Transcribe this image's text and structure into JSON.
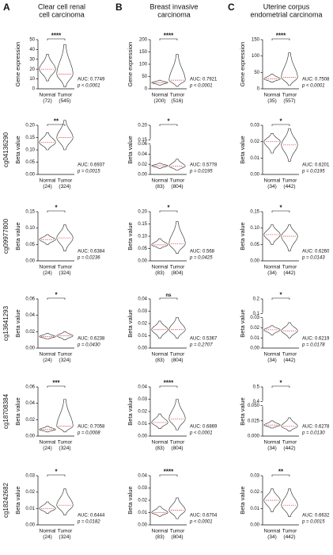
{
  "columns": [
    {
      "letter": "A",
      "title": [
        "Clear cell renal",
        "cell carcinoma"
      ]
    },
    {
      "letter": "B",
      "title": [
        "Breast invasive",
        "carcinoma"
      ]
    },
    {
      "letter": "C",
      "title": [
        "Uterine corpus",
        "endometrial carcinoma"
      ]
    }
  ],
  "row_labels": [
    "cg04136290",
    "cg09977800",
    "cg13641293",
    "cg18708384",
    "cg18242682"
  ],
  "colors": {
    "outline": "#222222",
    "median": "#e0403a"
  },
  "chart_data": [
    {
      "type": "violin",
      "ylabel": "Gene expression",
      "categories": [
        "Normal",
        "Tumor"
      ],
      "counts": [
        "(72)",
        "(545)"
      ],
      "ylim": [
        0,
        50
      ],
      "yticks": [
        0,
        10,
        20,
        30,
        40,
        50
      ],
      "significance": "****",
      "auc": "AUC: 0.7749",
      "p": "p < 0,0001",
      "min": [
        8,
        2
      ],
      "median": [
        20,
        15
      ],
      "max": [
        35,
        45
      ]
    },
    {
      "type": "violin",
      "ylabel": "Beta value",
      "categories": [
        "Normal",
        "Tumor"
      ],
      "counts": [
        "(24)",
        "(324)"
      ],
      "ylim": [
        0,
        0.2
      ],
      "yticks": [
        {
          "value": 0,
          "label": "0.00"
        },
        {
          "value": 0.05,
          "label": "0.05"
        },
        {
          "value": 0.1,
          "label": "0.10"
        },
        {
          "value": 0.15,
          "label": "0.15"
        },
        {
          "value": 0.2,
          "label": "0.20"
        }
      ],
      "significance": "**",
      "auc": "AUC: 0.6937",
      "p": "p = 0,0015",
      "min": [
        0.1,
        0.1
      ],
      "median": [
        0.13,
        0.15
      ],
      "max": [
        0.17,
        0.22
      ]
    },
    {
      "type": "violin",
      "ylabel": "Beta value",
      "categories": [
        "Normal",
        "Tumor"
      ],
      "counts": [
        "(24)",
        "(324)"
      ],
      "ylim": [
        0,
        0.15
      ],
      "yticks": [
        {
          "value": 0,
          "label": "0.00"
        },
        {
          "value": 0.05,
          "label": "0.05"
        },
        {
          "value": 0.1,
          "label": "0.10"
        },
        {
          "value": 0.15,
          "label": "0.15"
        }
      ],
      "significance": "*",
      "auc": "AUC: 0.6384",
      "p": "p = 0,0236",
      "min": [
        0.05,
        0.03
      ],
      "median": [
        0.065,
        0.07
      ],
      "max": [
        0.08,
        0.11
      ]
    },
    {
      "type": "violin",
      "ylabel": "Beta value",
      "categories": [
        "Normal",
        "Tumor"
      ],
      "counts": [
        "(24)",
        "(324)"
      ],
      "ylim": [
        0,
        0.06
      ],
      "yticks": [
        {
          "value": 0,
          "label": "0.00"
        },
        {
          "value": 0.02,
          "label": "0.02"
        },
        {
          "value": 0.04,
          "label": "0.04"
        },
        {
          "value": 0.06,
          "label": "0.06"
        }
      ],
      "significance": "*",
      "auc": "AUC: 0.6238",
      "p": "p = 0,0430",
      "min": [
        0.011,
        0.01
      ],
      "median": [
        0.014,
        0.015
      ],
      "max": [
        0.018,
        0.02
      ]
    },
    {
      "type": "violin",
      "ylabel": "Beta value",
      "categories": [
        "Normal",
        "Tumor"
      ],
      "counts": [
        "(24)",
        "(324)"
      ],
      "ylim": [
        0,
        0.06
      ],
      "yticks": [
        {
          "value": 0,
          "label": "0.00"
        },
        {
          "value": 0.02,
          "label": "0.02"
        },
        {
          "value": 0.04,
          "label": "0.04"
        },
        {
          "value": 0.06,
          "label": "0.06"
        }
      ],
      "significance": "***",
      "auc": "AUC: 0.7058",
      "p": "p = 0,0008",
      "min": [
        0.005,
        0.005
      ],
      "median": [
        0.008,
        0.012
      ],
      "max": [
        0.012,
        0.045
      ]
    },
    {
      "type": "violin",
      "ylabel": "Beta value",
      "categories": [
        "Normal",
        "Tumor"
      ],
      "counts": [
        "(24)",
        "(324)"
      ],
      "ylim": [
        0,
        0.03
      ],
      "yticks": [
        {
          "value": 0,
          "label": "0.00"
        },
        {
          "value": 0.01,
          "label": "0.01"
        },
        {
          "value": 0.02,
          "label": "0.02"
        },
        {
          "value": 0.03,
          "label": "0.03"
        }
      ],
      "significance": "*",
      "auc": "AUC: 0.6444",
      "p": "p = 0,0182",
      "min": [
        0.007,
        0.006
      ],
      "median": [
        0.01,
        0.012
      ],
      "max": [
        0.014,
        0.022
      ]
    },
    {
      "type": "violin",
      "ylabel": "Gene expression",
      "categories": [
        "Normal",
        "Tumor"
      ],
      "counts": [
        "(200)",
        "(516)"
      ],
      "ylim": [
        0,
        200
      ],
      "yticks": [
        0,
        50,
        100,
        150,
        200
      ],
      "significance": "****",
      "auc": "AUC: 0.7921",
      "p": "p < 0,0001",
      "min": [
        15,
        10
      ],
      "median": [
        25,
        35
      ],
      "max": [
        35,
        140
      ]
    },
    {
      "type": "violin",
      "ylabel": "Beta value",
      "categories": [
        "Normal",
        "Tumor"
      ],
      "counts": [
        "(83)",
        "(804)"
      ],
      "ylim": [
        0,
        0.2
      ],
      "ybreak": [
        0.06,
        0.15
      ],
      "yticks": [
        {
          "value": 0,
          "label": "0.00"
        },
        {
          "value": 0.02,
          "label": "0.02"
        },
        {
          "value": 0.04,
          "label": "0.04"
        },
        {
          "value": 0.06,
          "label": "0.06"
        },
        {
          "value": 0.15,
          "label": "0.15"
        },
        {
          "value": 0.2,
          "label": "0.20"
        }
      ],
      "significance": "*",
      "auc": "AUC: 0.5778",
      "p": "p = 0,0195",
      "min": [
        0.012,
        0.008
      ],
      "median": [
        0.017,
        0.016
      ],
      "max": [
        0.022,
        0.03
      ]
    },
    {
      "type": "violin",
      "ylabel": "Beta value",
      "categories": [
        "Normal",
        "Tumor"
      ],
      "counts": [
        "(83)",
        "(804)"
      ],
      "ylim": [
        0,
        0.2
      ],
      "yticks": [
        {
          "value": 0,
          "label": "0.00"
        },
        {
          "value": 0.05,
          "label": "0.05"
        },
        {
          "value": 0.1,
          "label": "0.10"
        },
        {
          "value": 0.15,
          "label": "0.15"
        },
        {
          "value": 0.2,
          "label": "0.20"
        }
      ],
      "significance": "*",
      "auc": "AUC: 0.568",
      "p": "p = 0,0425",
      "min": [
        0.05,
        0.03
      ],
      "median": [
        0.065,
        0.07
      ],
      "max": [
        0.09,
        0.16
      ]
    },
    {
      "type": "violin",
      "ylabel": "Beta value",
      "categories": [
        "Normal",
        "Tumor"
      ],
      "counts": [
        "(83)",
        "(804)"
      ],
      "ylim": [
        0,
        0.04
      ],
      "yticks": [
        {
          "value": 0,
          "label": "0.00"
        },
        {
          "value": 0.01,
          "label": "0.01"
        },
        {
          "value": 0.02,
          "label": "0.02"
        },
        {
          "value": 0.03,
          "label": "0.03"
        },
        {
          "value": 0.04,
          "label": "0.04"
        }
      ],
      "significance": "ns",
      "auc": "AUC: 0.5367",
      "p": "p = 0,2707",
      "min": [
        0.008,
        0.008
      ],
      "median": [
        0.015,
        0.015
      ],
      "max": [
        0.022,
        0.025
      ]
    },
    {
      "type": "violin",
      "ylabel": "Beta value",
      "categories": [
        "Normal",
        "Tumor"
      ],
      "counts": [
        "(83)",
        "(804)"
      ],
      "ylim": [
        0,
        0.04
      ],
      "yticks": [
        {
          "value": 0,
          "label": "0.00"
        },
        {
          "value": 0.01,
          "label": "0.01"
        },
        {
          "value": 0.02,
          "label": "0.02"
        },
        {
          "value": 0.03,
          "label": "0.03"
        },
        {
          "value": 0.04,
          "label": "0.04"
        }
      ],
      "significance": "****",
      "auc": "AUC: 0.6869",
      "p": "p < 0,0001",
      "min": [
        0.006,
        0.005
      ],
      "median": [
        0.011,
        0.014
      ],
      "max": [
        0.018,
        0.03
      ]
    },
    {
      "type": "violin",
      "ylabel": "Beta value",
      "categories": [
        "Normal",
        "Tumor"
      ],
      "counts": [
        "(83)",
        "(804)"
      ],
      "ylim": [
        0,
        0.04
      ],
      "yticks": [
        {
          "value": 0,
          "label": "0.00"
        },
        {
          "value": 0.01,
          "label": "0.01"
        },
        {
          "value": 0.02,
          "label": "0.02"
        },
        {
          "value": 0.03,
          "label": "0.03"
        },
        {
          "value": 0.04,
          "label": "0.04"
        }
      ],
      "significance": "****",
      "auc": "AUC: 0.6704",
      "p": "p < 0,0001",
      "min": [
        0.007,
        0.005
      ],
      "median": [
        0.01,
        0.012
      ],
      "max": [
        0.015,
        0.022
      ]
    },
    {
      "type": "violin",
      "ylabel": "Gene expression",
      "categories": [
        "Normal",
        "Tumor"
      ],
      "counts": [
        "(35)",
        "(557)"
      ],
      "ylim": [
        0,
        150
      ],
      "yticks": [
        0,
        50,
        100,
        150
      ],
      "significance": "****",
      "auc": "AUC: 0.7508",
      "p": "p < 0,0001",
      "min": [
        20,
        10
      ],
      "median": [
        30,
        35
      ],
      "max": [
        45,
        110
      ]
    },
    {
      "type": "violin",
      "ylabel": "Beta value",
      "categories": [
        "Normal",
        "Tumor"
      ],
      "counts": [
        "(34)",
        "(442)"
      ],
      "ylim": [
        0,
        0.03
      ],
      "yticks": [
        {
          "value": 0,
          "label": "0.00"
        },
        {
          "value": 0.01,
          "label": "0.01"
        },
        {
          "value": 0.02,
          "label": "0.02"
        },
        {
          "value": 0.03,
          "label": "0.03"
        }
      ],
      "significance": "*",
      "auc": "AUC: 0.6201",
      "p": "p = 0,0195",
      "min": [
        0.013,
        0.008
      ],
      "median": [
        0.02,
        0.018
      ],
      "max": [
        0.025,
        0.028
      ]
    },
    {
      "type": "violin",
      "ylabel": "Beta value",
      "categories": [
        "Normal",
        "Tumor"
      ],
      "counts": [
        "(34)",
        "(442)"
      ],
      "ylim": [
        0,
        0.15
      ],
      "yticks": [
        {
          "value": 0,
          "label": "0.00"
        },
        {
          "value": 0.05,
          "label": "0.05"
        },
        {
          "value": 0.1,
          "label": "0.10"
        },
        {
          "value": 0.15,
          "label": "0.15"
        }
      ],
      "significance": "*",
      "auc": "AUC: 0.6260",
      "p": "p = 0,0143",
      "min": [
        0.05,
        0.03
      ],
      "median": [
        0.08,
        0.075
      ],
      "max": [
        0.11,
        0.11
      ]
    },
    {
      "type": "violin",
      "ylabel": "Beta value",
      "categories": [
        "Normal",
        "Tumor"
      ],
      "counts": [
        "(34)",
        "(442)"
      ],
      "ylim": [
        0,
        0.2
      ],
      "ybreak": [
        0.03,
        0.1
      ],
      "yticks": [
        {
          "value": 0,
          "label": "0.00"
        },
        {
          "value": 0.01,
          "label": "0.01"
        },
        {
          "value": 0.02,
          "label": "0.02"
        },
        {
          "value": 0.03,
          "label": "0.03"
        },
        0.1,
        0.2
      ],
      "significance": "*",
      "auc": "AUC: 0.6219",
      "p": "p = 0,0178",
      "min": [
        0.013,
        0.01
      ],
      "median": [
        0.018,
        0.017
      ],
      "max": [
        0.022,
        0.025
      ]
    },
    {
      "type": "violin",
      "ylabel": "Beta value",
      "categories": [
        "Normal",
        "Tumor"
      ],
      "counts": [
        "(34)",
        "(442)"
      ],
      "ylim": [
        0,
        0.5
      ],
      "ybreak": [
        0.05,
        0.4
      ],
      "yticks": [
        {
          "value": 0,
          "label": "0.000"
        },
        {
          "value": 0.025,
          "label": "0.025"
        },
        {
          "value": 0.05,
          "label": "0.050"
        },
        0.4,
        0.5
      ],
      "significance": "*",
      "auc": "AUC: 0.6278",
      "p": "p = 0,0130",
      "min": [
        0.013,
        0.008
      ],
      "median": [
        0.018,
        0.016
      ],
      "max": [
        0.025,
        0.03
      ]
    },
    {
      "type": "violin",
      "ylabel": "Beta value",
      "categories": [
        "Normal",
        "Tumor"
      ],
      "counts": [
        "(34)",
        "(442)"
      ],
      "ylim": [
        0,
        0.03
      ],
      "yticks": [
        {
          "value": 0,
          "label": "0.00"
        },
        {
          "value": 0.01,
          "label": "0.01"
        },
        {
          "value": 0.02,
          "label": "0.02"
        },
        {
          "value": 0.03,
          "label": "0.03"
        }
      ],
      "significance": "**",
      "auc": "AUC: 0.6632",
      "p": "p = 0,0015",
      "min": [
        0.008,
        0.005
      ],
      "median": [
        0.015,
        0.012
      ],
      "max": [
        0.022,
        0.022
      ]
    }
  ]
}
